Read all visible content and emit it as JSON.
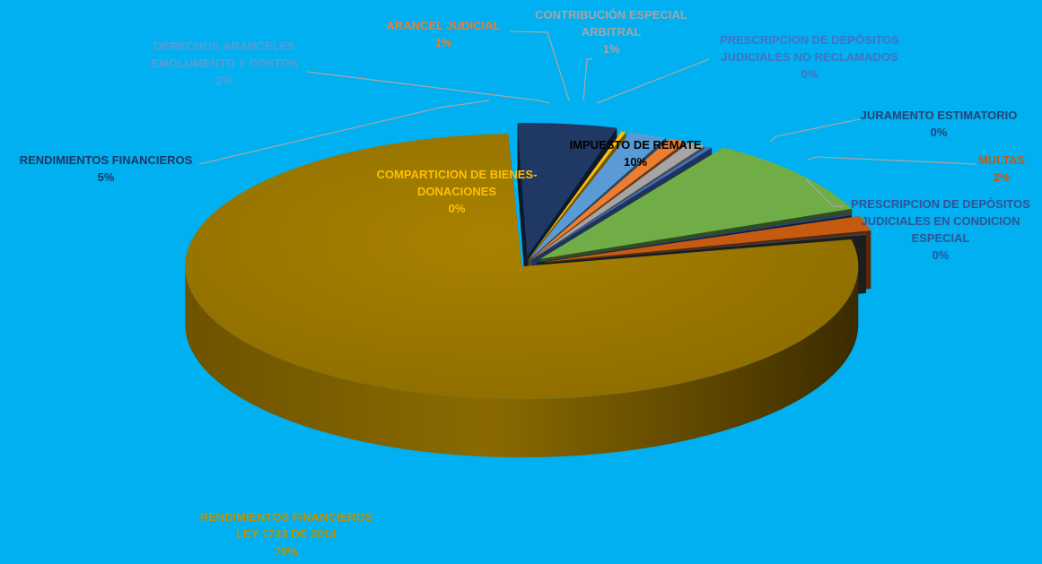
{
  "chart_data": {
    "type": "pie",
    "title": "",
    "style": "3d-exploded",
    "background": "#00b0f0",
    "slices": [
      {
        "label": "RENDIMIENTOS FINANCIEROS",
        "label_lines": [
          "RENDIMIENTOS FINANCIEROS"
        ],
        "value": 5,
        "pct_label": "5%",
        "color": "#203864",
        "label_color": "#1f3864"
      },
      {
        "label": "COMPARTICION DE BIENES-DONACIONES",
        "label_lines": [
          "COMPARTICION DE BIENES-",
          "DONACIONES"
        ],
        "value": 0,
        "pct_label": "0%",
        "color": "#ffc000",
        "label_color": "#ffc000"
      },
      {
        "label": "DERECHOS ARANCELES EMOLUMENTO Y COSTOS",
        "label_lines": [
          "DERECHOS ARANCELES",
          "EMOLUMENTO Y COSTOS"
        ],
        "value": 2,
        "pct_label": "2%",
        "color": "#5b9bd5",
        "label_color": "#5b9bd5"
      },
      {
        "label": "ARANCEL JUDICIAL",
        "label_lines": [
          "ARANCEL JUDICIAL"
        ],
        "value": 1,
        "pct_label": "1%",
        "color": "#ed7d31",
        "label_color": "#ed7d31"
      },
      {
        "label": "CONTRIBUCIÓN ESPECIAL ARBITRAL",
        "label_lines": [
          "CONTRIBUCIÓN ESPECIAL",
          "ARBITRAL"
        ],
        "value": 1,
        "pct_label": "1%",
        "color": "#a5a5a5",
        "label_color": "#a5a5a5"
      },
      {
        "label": "PRESCRIPCION DE DEPÓSITOS JUDICIALES NO RECLAMADOS",
        "label_lines": [
          "PRESCRIPCION DE DEPÓSITOS",
          "JUDICIALES NO RECLAMADOS"
        ],
        "value": 0,
        "pct_label": "0%",
        "color": "#4472c4",
        "label_color": "#4472c4"
      },
      {
        "label": "IMPUESTO DE REMATE",
        "label_lines": [
          "IMPUESTO DE REMATE"
        ],
        "value": 10,
        "pct_label": "10%",
        "color": "#70ad47",
        "label_color": "#000000"
      },
      {
        "label": "JURAMENTO ESTIMATORIO",
        "label_lines": [
          "JURAMENTO ESTIMATORIO"
        ],
        "value": 0,
        "pct_label": "0%",
        "color": "#264478",
        "label_color": "#264478"
      },
      {
        "label": "MULTAS",
        "label_lines": [
          "MULTAS"
        ],
        "value": 2,
        "pct_label": "2%",
        "color": "#c55a11",
        "label_color": "#c55a11"
      },
      {
        "label": "PRESCRIPCION DE DEPÓSITOS JUDICIALES EN CONDICION ESPECIAL",
        "label_lines": [
          "PRESCRIPCION DE DEPÓSITOS",
          "JUDICIALES EN CONDICION",
          "ESPECIAL"
        ],
        "value": 0,
        "pct_label": "0%",
        "color": "#404040",
        "label_color": "#2f5597"
      },
      {
        "label": "RENDIMIENTOS FINANCIEROS LEY 1743 DE 2014",
        "label_lines": [
          "RENDIMIENTOS FINANCIEROS",
          "LEY 1743 DE 2014"
        ],
        "value": 79,
        "pct_label": "79%",
        "color": "#9e7800",
        "label_color": "#c09000"
      }
    ]
  }
}
